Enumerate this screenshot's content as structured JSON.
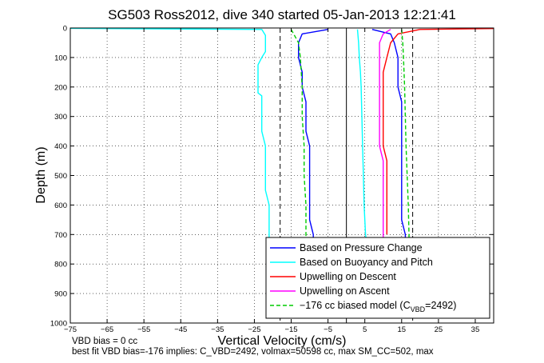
{
  "chart_data": {
    "type": "line",
    "title": "SG503 Ross2012, dive 340 started 05-Jan-2013 12:21:41",
    "xlabel": "Vertical Velocity (cm/s)",
    "ylabel": "Depth (m)",
    "xlim": [
      -75,
      40
    ],
    "ylim": [
      0,
      1000
    ],
    "y_reversed": true,
    "grid": true,
    "x_ticks": [
      -75,
      -65,
      -55,
      -45,
      -35,
      -25,
      -15,
      -5,
      5,
      15,
      25,
      35
    ],
    "y_ticks": [
      0,
      100,
      200,
      300,
      400,
      500,
      600,
      700,
      800,
      900,
      1000
    ],
    "legend_position": "bottom-right",
    "series": [
      {
        "name": "Based on Pressure Change",
        "color": "#0000ff",
        "style": "solid",
        "branches": [
          {
            "x": [
              -5,
              -12,
              -13,
              -13,
              -12,
              -12,
              -11,
              -11,
              -11,
              -10,
              -10,
              -10,
              -10,
              -10,
              -10,
              -9,
              -9,
              -10
            ],
            "y": [
              5,
              20,
              50,
              100,
              150,
              200,
              250,
              300,
              350,
              400,
              450,
              500,
              550,
              600,
              650,
              700,
              720,
              740
            ]
          },
          {
            "x": [
              7,
              12,
              13,
              14,
              14,
              14,
              15,
              15,
              15,
              15,
              15,
              15,
              15,
              15,
              15,
              16,
              16,
              16
            ],
            "y": [
              5,
              20,
              50,
              100,
              150,
              200,
              250,
              300,
              350,
              400,
              450,
              500,
              550,
              600,
              650,
              700,
              720,
              740
            ]
          }
        ]
      },
      {
        "name": "Based on Buoyancy and Pitch",
        "color": "#00ffff",
        "style": "solid",
        "branches": [
          {
            "x": [
              -75,
              -23,
              -22,
              -22,
              -23,
              -24,
              -24,
              -23,
              -23,
              -23,
              -22,
              -22,
              -22,
              -21,
              -21,
              -21,
              -21,
              -21,
              -21,
              -21
            ],
            "y": [
              1,
              5,
              25,
              80,
              100,
              125,
              220,
              230,
              300,
              350,
              400,
              500,
              550,
              600,
              650,
              700,
              730,
              760,
              790,
              800
            ]
          },
          {
            "x": [
              3,
              3.3,
              3.5,
              3.8,
              4,
              4.2,
              4.4,
              4.6,
              4.8,
              5,
              5.2,
              5.5
            ],
            "y": [
              5,
              50,
              100,
              150,
              200,
              300,
              400,
              500,
              600,
              650,
              700,
              730
            ]
          }
        ]
      },
      {
        "name": "Upwelling on Descent",
        "color": "#ff0000",
        "style": "solid",
        "branches": [
          {
            "x": [
              40,
              20,
              14,
              12,
              11,
              10,
              10,
              10,
              10,
              11,
              11,
              11,
              11,
              11,
              11
            ],
            "y": [
              2,
              5,
              20,
              50,
              100,
              150,
              200,
              300,
              400,
              450,
              500,
              550,
              600,
              650,
              700
            ]
          }
        ]
      },
      {
        "name": "Upwelling on Ascent",
        "color": "#ff00ff",
        "style": "solid",
        "branches": [
          {
            "x": [
              12,
              10,
              9,
              9,
              9,
              9,
              9,
              9,
              9,
              10,
              10,
              10,
              10,
              10,
              10,
              10
            ],
            "y": [
              5,
              20,
              50,
              100,
              150,
              200,
              250,
              300,
              400,
              450,
              500,
              550,
              600,
              650,
              700,
              730
            ]
          }
        ]
      },
      {
        "name": "-176 cc biased model (C_VBD=2492)",
        "color": "#00cc00",
        "style": "dashed",
        "branches": [
          {
            "x": [
              -15,
              -13,
              -12.5,
              -12,
              -12,
              -11.5,
              -11.5,
              -11,
              -11,
              -11
            ],
            "y": [
              5,
              50,
              100,
              200,
              300,
              400,
              500,
              600,
              700,
              740
            ]
          },
          {
            "x": [
              15,
              15.3,
              15.5,
              15.8,
              16,
              16.2,
              16.5,
              16.8,
              17,
              17
            ],
            "y": [
              5,
              50,
              100,
              200,
              300,
              400,
              500,
              600,
              700,
              740
            ]
          }
        ]
      }
    ],
    "reference_lines": [
      {
        "x": 0,
        "style": "solid",
        "color": "#000000"
      },
      {
        "x": -18,
        "style": "dashed",
        "color": "#000000"
      },
      {
        "x": 18,
        "style": "dashed",
        "color": "#000000"
      }
    ]
  },
  "legend": {
    "entries": [
      {
        "label": "Based on Pressure Change",
        "color": "#0000ff",
        "dashed": false
      },
      {
        "label": "Based on Buoyancy and Pitch",
        "color": "#00ffff",
        "dashed": false
      },
      {
        "label": "Upwelling on Descent",
        "color": "#ff0000",
        "dashed": false
      },
      {
        "label": "Upwelling on Ascent",
        "color": "#ff00ff",
        "dashed": false
      }
    ],
    "model_prefix": "−176 cc biased model (C",
    "model_sub": "VBD",
    "model_suffix": "=2492)",
    "model_color": "#00cc00"
  },
  "notes": {
    "line1": "VBD bias = 0 cc",
    "line2": "best fit VBD bias=-176 implies: C_VBD=2492, volmax=50598 cc, max SM_CC=502, max"
  }
}
